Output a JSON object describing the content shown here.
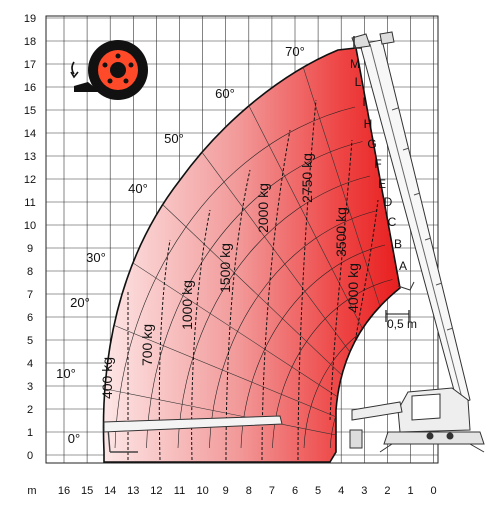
{
  "y_ticks": [
    "0",
    "1",
    "2",
    "3",
    "4",
    "5",
    "6",
    "7",
    "8",
    "9",
    "10",
    "11",
    "12",
    "13",
    "14",
    "15",
    "16",
    "17",
    "18",
    "19"
  ],
  "x_ticks": [
    "16",
    "15",
    "14",
    "13",
    "12",
    "11",
    "10",
    "9",
    "8",
    "7",
    "6",
    "5",
    "4",
    "3",
    "2",
    "1",
    "0"
  ],
  "unit_label": "m",
  "angles": [
    "0°",
    "10°",
    "20°",
    "30°",
    "40°",
    "50°",
    "60°",
    "70°"
  ],
  "load_labels": [
    "400 kg",
    "700 kg",
    "1000 kg",
    "1500 kg",
    "2000 kg",
    "2750 kg",
    "3500 kg",
    "4000 kg"
  ],
  "extension_letters": [
    "A",
    "B",
    "C",
    "D",
    "E",
    "F",
    "G",
    "H",
    "I",
    "L",
    "M"
  ],
  "scale_label": "0,5 m",
  "colors": {
    "chart_light": "#fbe3e3",
    "chart_mid": "#ef8a8a",
    "chart_dark": "#e81e1e",
    "grid": "#222222",
    "machine": "#444444"
  },
  "icons": {
    "rotation": "wheel-rotation-icon"
  }
}
